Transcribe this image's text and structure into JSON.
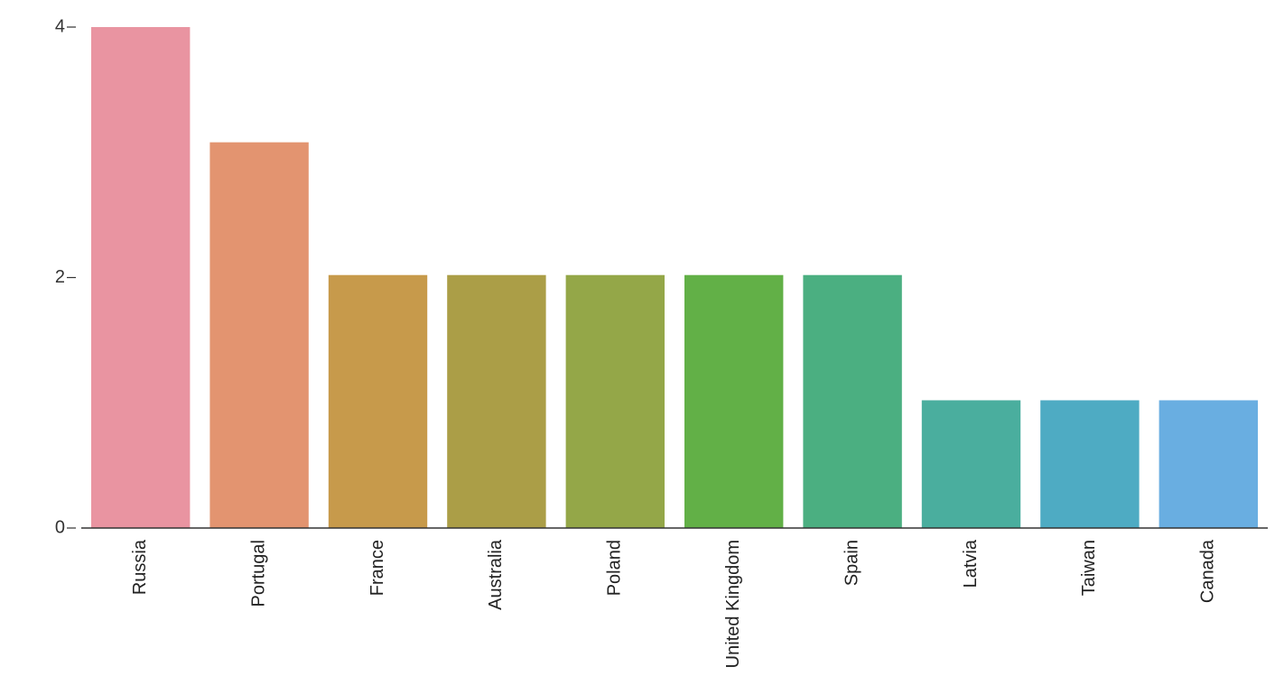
{
  "chart_data": {
    "type": "bar",
    "title": "",
    "xlabel": "",
    "ylabel": "",
    "categories": [
      "Russia",
      "Portugal",
      "France",
      "Australia",
      "Poland",
      "United Kingdom",
      "Spain",
      "Latvia",
      "Taiwan",
      "Canada"
    ],
    "values": [
      4,
      3.08,
      2.02,
      2.02,
      2.02,
      2.02,
      2.02,
      1.02,
      1.02,
      1.02
    ],
    "ylim": [
      0,
      4
    ],
    "yticks": [
      0,
      2,
      4
    ],
    "grid": false,
    "legend": "none",
    "colors": [
      "#e994a1",
      "#e39470",
      "#c79a4b",
      "#ab9e47",
      "#94a748",
      "#62b047",
      "#4baf81",
      "#4aae9e",
      "#4eabc3",
      "#69aee1"
    ]
  }
}
